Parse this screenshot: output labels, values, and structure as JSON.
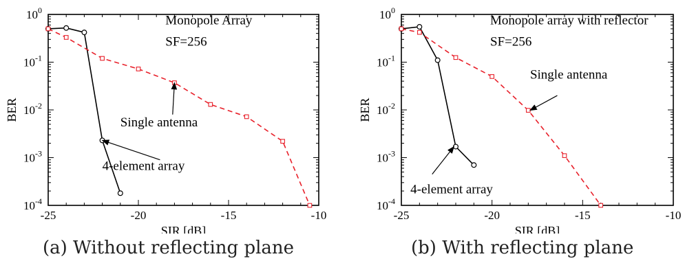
{
  "chart_data": [
    {
      "type": "line",
      "caption": "(a) Without reflecting plane",
      "xlabel": "SIR [dB]",
      "ylabel": "BER",
      "yscale": "log",
      "xlim": [
        -25,
        -10
      ],
      "ylim": [
        0.0001,
        1
      ],
      "xticks": [
        -25,
        -20,
        -15,
        -10
      ],
      "xtick_labels": [
        "-25",
        "-20",
        "-15",
        "-10"
      ],
      "yticks": [
        0.0001,
        0.001,
        0.01,
        0.1,
        1
      ],
      "ytick_labels": [
        {
          "base": "10",
          "exp": "-4"
        },
        {
          "base": "10",
          "exp": "-3"
        },
        {
          "base": "10",
          "exp": "-2"
        },
        {
          "base": "10",
          "exp": "-1"
        },
        {
          "base": "10",
          "exp": "0"
        }
      ],
      "annotations": [
        {
          "text": "Monopole Array",
          "x": -18.5,
          "y": 0.62
        },
        {
          "text": "SF=256",
          "x": -18.5,
          "y": 0.22
        }
      ],
      "series": [
        {
          "label": "4-element array",
          "color": "#000000",
          "dash": "solid",
          "marker": "circle",
          "x": [
            -25,
            -24,
            -23,
            -22,
            -21
          ],
          "y": [
            0.5,
            0.52,
            0.42,
            0.0023,
            0.00018
          ],
          "pointer": {
            "label_x": -22,
            "label_y": 0.00055,
            "tip_x": -22,
            "tip_y": 0.0023,
            "tail_x": -18.8,
            "tail_y": 0.0009
          }
        },
        {
          "label": "Single antenna",
          "color": "#e8202a",
          "dash": "dashed",
          "marker": "square",
          "x": [
            -25,
            -24,
            -22,
            -20,
            -18,
            -16,
            -14,
            -12,
            -10.5
          ],
          "y": [
            0.5,
            0.33,
            0.12,
            0.072,
            0.037,
            0.013,
            0.0072,
            0.0022,
            0.0001
          ],
          "pointer": {
            "label_x": -21,
            "label_y": 0.0045,
            "tip_x": -18,
            "tip_y": 0.037,
            "tail_x": -18.1,
            "tail_y": 0.008
          }
        }
      ]
    },
    {
      "type": "line",
      "caption": "(b) With reflecting plane",
      "xlabel": "SIR [dB]",
      "ylabel": "BER",
      "yscale": "log",
      "xlim": [
        -25,
        -10
      ],
      "ylim": [
        0.0001,
        1
      ],
      "xticks": [
        -25,
        -20,
        -15,
        -10
      ],
      "xtick_labels": [
        "-25",
        "-20",
        "-15",
        "-10"
      ],
      "yticks": [
        0.0001,
        0.001,
        0.01,
        0.1,
        1
      ],
      "ytick_labels": [
        {
          "base": "10",
          "exp": "-4"
        },
        {
          "base": "10",
          "exp": "-3"
        },
        {
          "base": "10",
          "exp": "-2"
        },
        {
          "base": "10",
          "exp": "-1"
        },
        {
          "base": "10",
          "exp": "0"
        }
      ],
      "annotations": [
        {
          "text": "Monopole array with reflector",
          "x": -20.1,
          "y": 0.62
        },
        {
          "text": "SF=256",
          "x": -20.1,
          "y": 0.22
        }
      ],
      "series": [
        {
          "label": "4-element array",
          "color": "#000000",
          "dash": "solid",
          "marker": "circle",
          "x": [
            -25,
            -24,
            -23,
            -22,
            -21
          ],
          "y": [
            0.5,
            0.55,
            0.11,
            0.0017,
            0.0007
          ],
          "pointer": {
            "label_x": -24.5,
            "label_y": 0.00018,
            "tip_x": -22.1,
            "tip_y": 0.0017,
            "tail_x": -23.3,
            "tail_y": 0.00045
          }
        },
        {
          "label": "Single antenna",
          "color": "#e8202a",
          "dash": "dashed",
          "marker": "square",
          "x": [
            -25,
            -24,
            -22,
            -20,
            -18,
            -16,
            -14
          ],
          "y": [
            0.5,
            0.42,
            0.125,
            0.05,
            0.0098,
            0.0011,
            0.0001
          ],
          "pointer": {
            "label_x": -17.9,
            "label_y": 0.045,
            "tip_x": -17.9,
            "tip_y": 0.0098,
            "tail_x": -16.4,
            "tail_y": 0.02
          }
        }
      ]
    }
  ]
}
